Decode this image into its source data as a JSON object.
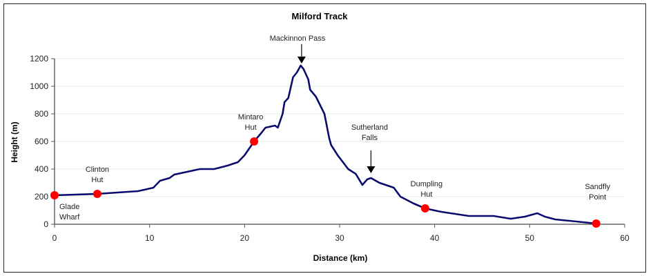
{
  "chart_data": {
    "type": "line",
    "title": "Milford Track",
    "xlabel": "Distance (km)",
    "ylabel": "Height (m)",
    "xlim": [
      0,
      60
    ],
    "ylim": [
      0,
      1200
    ],
    "x_ticks": [
      0,
      10,
      20,
      30,
      40,
      50,
      60
    ],
    "y_ticks": [
      0,
      200,
      400,
      600,
      800,
      1000,
      1200
    ],
    "grid": {
      "horizontal": true,
      "vertical": false,
      "color": "#d8f0e0"
    },
    "legend": null,
    "series": [
      {
        "name": "Elevation profile",
        "color": "#0a0a6e",
        "x": [
          0,
          4.5,
          8.8,
          10.4,
          11.1,
          12.1,
          12.6,
          15.3,
          16.8,
          18.2,
          19.3,
          20.0,
          21.0,
          21.8,
          22.2,
          23.2,
          23.5,
          24.0,
          24.2,
          24.6,
          25.1,
          25.5,
          25.9,
          26.2,
          26.7,
          26.9,
          27.5,
          28.4,
          28.9,
          29.1,
          29.8,
          30.9,
          31.7,
          32.4,
          32.9,
          33.3,
          34.2,
          35.7,
          36.4,
          37.8,
          39.0,
          40.7,
          43.6,
          46.2,
          48.0,
          49.5,
          50.8,
          51.6,
          52.7,
          54.9,
          57.0
        ],
        "y": [
          210,
          220,
          240,
          265,
          315,
          335,
          360,
          400,
          400,
          425,
          450,
          500,
          600,
          665,
          700,
          715,
          700,
          800,
          885,
          915,
          1065,
          1100,
          1150,
          1125,
          1050,
          975,
          925,
          800,
          625,
          575,
          500,
          400,
          365,
          285,
          325,
          335,
          300,
          265,
          200,
          150,
          115,
          90,
          60,
          60,
          40,
          55,
          80,
          55,
          35,
          20,
          5
        ]
      }
    ],
    "markers": [
      {
        "label_lines": [
          "Glade",
          "Wharf"
        ],
        "x": 0,
        "y": 210,
        "color": "#ff0000"
      },
      {
        "label_lines": [
          "Clinton",
          "Hut"
        ],
        "x": 4.5,
        "y": 220,
        "color": "#ff0000"
      },
      {
        "label_lines": [
          "Mintaro",
          "Hut"
        ],
        "x": 21,
        "y": 600,
        "color": "#ff0000"
      },
      {
        "label_lines": [
          "Dumpling",
          "Hut"
        ],
        "x": 39,
        "y": 115,
        "color": "#ff0000"
      },
      {
        "label_lines": [
          "Sandfly",
          "Point"
        ],
        "x": 57,
        "y": 5,
        "color": "#ff0000"
      }
    ],
    "arrow_annotations": [
      {
        "label_lines": [
          "Mackinnon Pass"
        ],
        "x": 26,
        "y": 1150
      },
      {
        "label_lines": [
          "Sutherland",
          "Falls"
        ],
        "x": 33.3,
        "y": 380
      }
    ]
  },
  "labels": {
    "title": "Milford Track",
    "xlabel": "Distance (km)",
    "ylabel": "Height (m)"
  }
}
